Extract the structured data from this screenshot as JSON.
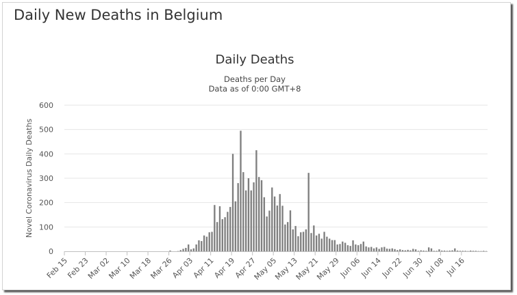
{
  "page": {
    "title": "Daily New Deaths in Belgium"
  },
  "chart_data": {
    "type": "bar",
    "title": "Daily Deaths",
    "subtitle_lines": [
      "Deaths per Day",
      "Data as of 0:00 GMT+8"
    ],
    "xlabel": "",
    "ylabel": "Novel Coronavirus Daily Deaths",
    "ylim": [
      0,
      600
    ],
    "yticks": [
      0,
      100,
      200,
      300,
      400,
      500,
      600
    ],
    "grid": true,
    "start_date": "Feb 15",
    "xtick_labels": [
      "Feb 15",
      "Feb 23",
      "Mar 02",
      "Mar 10",
      "Mar 18",
      "Mar 26",
      "Apr 03",
      "Apr 11",
      "Apr 19",
      "Apr 27",
      "May 05",
      "May 13",
      "May 21",
      "May 29",
      "Jun 06",
      "Jun 14",
      "Jun 22",
      "Jun 30",
      "Jul 08",
      "Jul 16"
    ],
    "xtick_every": 8,
    "series": [
      {
        "name": "Daily Deaths",
        "color": "#7f7f7f",
        "values": [
          0,
          0,
          0,
          0,
          0,
          0,
          0,
          0,
          0,
          0,
          0,
          0,
          0,
          0,
          0,
          0,
          0,
          0,
          0,
          0,
          0,
          0,
          0,
          0,
          0,
          0,
          0,
          0,
          0,
          0,
          0,
          0,
          0,
          0,
          0,
          0,
          0,
          0,
          0,
          0,
          3,
          0,
          0,
          1,
          5,
          10,
          14,
          28,
          8,
          12,
          28,
          45,
          42,
          65,
          60,
          78,
          80,
          190,
          120,
          185,
          132,
          140,
          162,
          182,
          400,
          205,
          280,
          495,
          325,
          250,
          300,
          250,
          283,
          415,
          305,
          292,
          222,
          143,
          167,
          262,
          225,
          188,
          235,
          187,
          110,
          120,
          168,
          90,
          104,
          62,
          78,
          80,
          90,
          322,
          75,
          106,
          65,
          72,
          52,
          80,
          60,
          52,
          46,
          46,
          28,
          30,
          40,
          35,
          25,
          22,
          45,
          28,
          25,
          30,
          40,
          20,
          16,
          18,
          12,
          16,
          10,
          16,
          18,
          11,
          10,
          12,
          9,
          5,
          8,
          5,
          4,
          6,
          4,
          10,
          8,
          2,
          4,
          3,
          2,
          16,
          12,
          2,
          2,
          8,
          3,
          3,
          2,
          3,
          4,
          12,
          3,
          2,
          2,
          2,
          1,
          3,
          2,
          2,
          1,
          1,
          2,
          1
        ]
      }
    ]
  }
}
